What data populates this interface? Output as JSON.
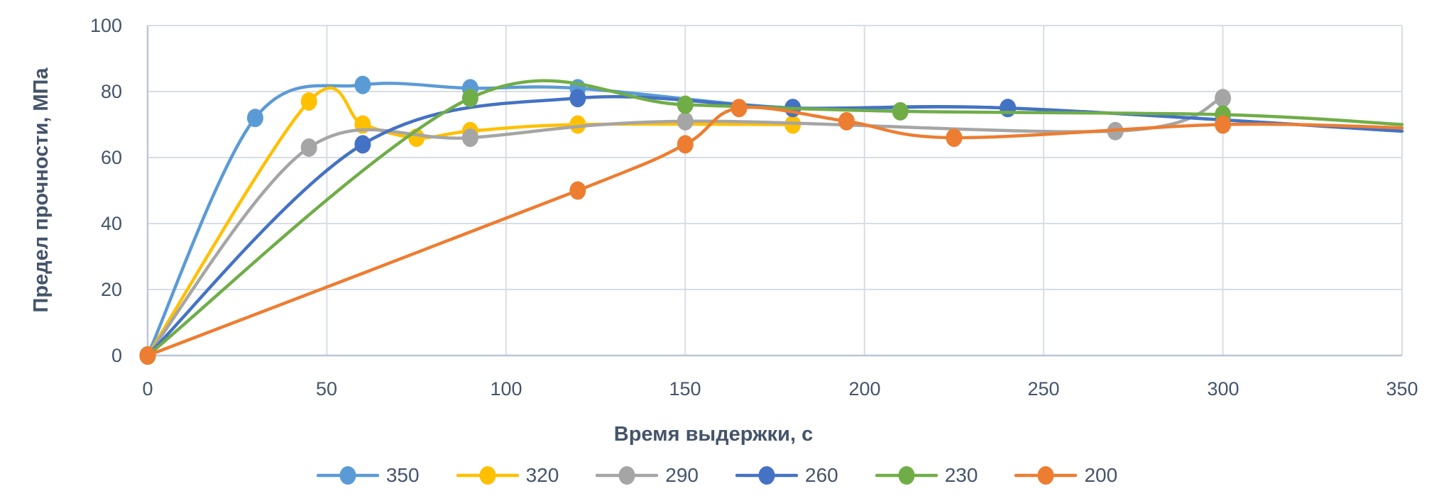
{
  "chart_data": {
    "type": "line",
    "title": "",
    "xlabel": "Время выдержки, с",
    "ylabel": "Предел прочности, МПа",
    "xlim": [
      0,
      350
    ],
    "ylim": [
      0,
      100
    ],
    "x_ticks": [
      0,
      50,
      100,
      150,
      200,
      250,
      300,
      350
    ],
    "y_ticks": [
      0,
      20,
      40,
      60,
      80,
      100
    ],
    "grid": true,
    "legend_position": "bottom",
    "line_style": "smooth",
    "text_color": "#44546A",
    "grid_color": "#D8DDE6",
    "axis_color": "#BCC6D4",
    "series": [
      {
        "name": "350",
        "color": "#5B9BD5",
        "points": [
          {
            "x": 0,
            "y": 0
          },
          {
            "x": 30,
            "y": 72
          },
          {
            "x": 60,
            "y": 82
          },
          {
            "x": 90,
            "y": 81
          },
          {
            "x": 120,
            "y": 81
          },
          {
            "x": 180,
            "y": 75
          },
          {
            "x": 240,
            "y": 75
          },
          {
            "x": 350,
            "y": 68,
            "marker": false
          }
        ]
      },
      {
        "name": "320",
        "color": "#FFC000",
        "points": [
          {
            "x": 0,
            "y": 0
          },
          {
            "x": 45,
            "y": 77
          },
          {
            "x": 60,
            "y": 70
          },
          {
            "x": 75,
            "y": 66
          },
          {
            "x": 90,
            "y": 68
          },
          {
            "x": 120,
            "y": 70
          },
          {
            "x": 180,
            "y": 70
          }
        ]
      },
      {
        "name": "290",
        "color": "#A5A5A5",
        "points": [
          {
            "x": 0,
            "y": 0
          },
          {
            "x": 45,
            "y": 63
          },
          {
            "x": 90,
            "y": 66
          },
          {
            "x": 150,
            "y": 71
          },
          {
            "x": 270,
            "y": 68
          },
          {
            "x": 300,
            "y": 78
          }
        ]
      },
      {
        "name": "260",
        "color": "#4472C4",
        "points": [
          {
            "x": 0,
            "y": 0
          },
          {
            "x": 60,
            "y": 64
          },
          {
            "x": 120,
            "y": 78
          },
          {
            "x": 180,
            "y": 75
          },
          {
            "x": 240,
            "y": 75
          },
          {
            "x": 350,
            "y": 68,
            "marker": false
          }
        ]
      },
      {
        "name": "230",
        "color": "#70AD47",
        "points": [
          {
            "x": 0,
            "y": 0
          },
          {
            "x": 90,
            "y": 78
          },
          {
            "x": 150,
            "y": 76
          },
          {
            "x": 210,
            "y": 74
          },
          {
            "x": 300,
            "y": 73
          },
          {
            "x": 350,
            "y": 70,
            "marker": false
          }
        ]
      },
      {
        "name": "200",
        "color": "#ED7D31",
        "points": [
          {
            "x": 0,
            "y": 0
          },
          {
            "x": 120,
            "y": 50
          },
          {
            "x": 150,
            "y": 64
          },
          {
            "x": 165,
            "y": 75
          },
          {
            "x": 195,
            "y": 71
          },
          {
            "x": 225,
            "y": 66
          },
          {
            "x": 300,
            "y": 70
          },
          {
            "x": 350,
            "y": 69,
            "marker": false
          }
        ]
      }
    ]
  }
}
